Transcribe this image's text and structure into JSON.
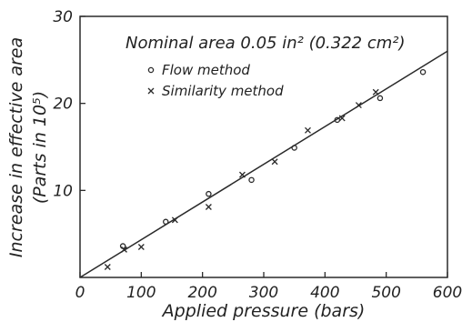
{
  "chart_data": {
    "type": "scatter",
    "xlabel": "Applied pressure (bars)",
    "ylabel_line1": "Increase in effective area",
    "ylabel_line2": "(Parts in 10⁵)",
    "xlim": [
      0,
      600
    ],
    "ylim": [
      0,
      30
    ],
    "xticks": [
      0,
      100,
      200,
      300,
      400,
      500,
      600
    ],
    "yticks": [
      10,
      20,
      30
    ],
    "grid": false,
    "legend_position": "top",
    "annotation": "Nominal area 0.05 in² (0.322 cm²)",
    "series": [
      {
        "name": "Flow method",
        "marker": "circle",
        "points": [
          [
            70,
            3.6
          ],
          [
            140,
            6.4
          ],
          [
            210,
            9.6
          ],
          [
            280,
            11.2
          ],
          [
            350,
            14.9
          ],
          [
            420,
            18.1
          ],
          [
            490,
            20.6
          ],
          [
            560,
            23.6
          ]
        ]
      },
      {
        "name": "Similarity method",
        "marker": "x",
        "points": [
          [
            45,
            1.2
          ],
          [
            72,
            3.2
          ],
          [
            100,
            3.5
          ],
          [
            155,
            6.6
          ],
          [
            210,
            8.1
          ],
          [
            265,
            11.8
          ],
          [
            318,
            13.3
          ],
          [
            372,
            16.9
          ],
          [
            428,
            18.3
          ],
          [
            455,
            19.8
          ],
          [
            483,
            21.3
          ]
        ]
      }
    ],
    "fit_line": {
      "x": [
        0,
        600
      ],
      "y": [
        0,
        26
      ]
    }
  }
}
